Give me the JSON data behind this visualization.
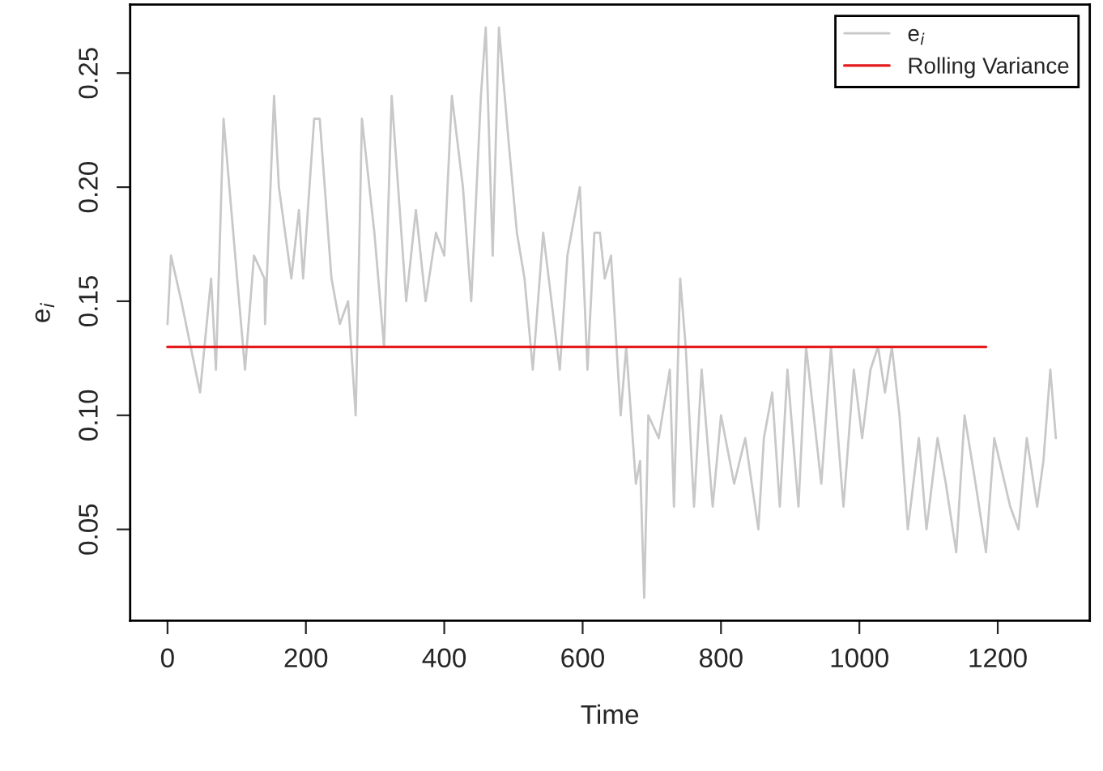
{
  "chart_data": {
    "type": "line",
    "xlabel": "Time",
    "ylabel": "e$_{i}$",
    "xlim": [
      -54,
      1333
    ],
    "ylim": [
      0.01,
      0.28
    ],
    "xticks": [
      0,
      200,
      400,
      600,
      800,
      1000,
      1200
    ],
    "yticks": [
      {
        "value": 0.05,
        "label": "0.05"
      },
      {
        "value": 0.1,
        "label": "0.10"
      },
      {
        "value": 0.15,
        "label": "0.15"
      },
      {
        "value": 0.2,
        "label": "0.20"
      },
      {
        "value": 0.25,
        "label": "0.25"
      }
    ],
    "grid": false,
    "legend": "top right",
    "marker": "none",
    "line_style": "solid",
    "series": [
      {
        "name": "e$_{i}$",
        "color": "#c8c8c8",
        "x": [
          0,
          5,
          20,
          47,
          63,
          70,
          81,
          95,
          112,
          125,
          140,
          141,
          154,
          161,
          170,
          179,
          190,
          196,
          212,
          220,
          237,
          249,
          261,
          272,
          281,
          299,
          313,
          324,
          345,
          359,
          373,
          388,
          400,
          411,
          427,
          439,
          453,
          460,
          470,
          479,
          493,
          505,
          516,
          528,
          543,
          555,
          567,
          578,
          596,
          607,
          617,
          625,
          632,
          641,
          655,
          663,
          677,
          683,
          689,
          695,
          710,
          726,
          732,
          741,
          749,
          761,
          772,
          788,
          800,
          819,
          835,
          854,
          862,
          874,
          885,
          896,
          912,
          923,
          945,
          959,
          977,
          992,
          1004,
          1016,
          1027,
          1037,
          1047,
          1058,
          1070,
          1086,
          1097,
          1113,
          1125,
          1140,
          1152,
          1168,
          1183,
          1195,
          1218,
          1230,
          1242,
          1257,
          1266,
          1276,
          1284
        ],
        "values": [
          0.14,
          0.17,
          0.15,
          0.11,
          0.16,
          0.12,
          0.23,
          0.18,
          0.12,
          0.17,
          0.16,
          0.14,
          0.24,
          0.2,
          0.18,
          0.16,
          0.19,
          0.16,
          0.23,
          0.23,
          0.16,
          0.14,
          0.15,
          0.1,
          0.23,
          0.18,
          0.13,
          0.24,
          0.15,
          0.19,
          0.15,
          0.18,
          0.17,
          0.24,
          0.2,
          0.15,
          0.24,
          0.27,
          0.17,
          0.27,
          0.22,
          0.18,
          0.16,
          0.12,
          0.18,
          0.15,
          0.12,
          0.17,
          0.2,
          0.12,
          0.18,
          0.18,
          0.16,
          0.17,
          0.1,
          0.13,
          0.07,
          0.08,
          0.02,
          0.1,
          0.09,
          0.12,
          0.06,
          0.16,
          0.13,
          0.06,
          0.12,
          0.06,
          0.1,
          0.07,
          0.09,
          0.05,
          0.09,
          0.11,
          0.06,
          0.12,
          0.06,
          0.13,
          0.07,
          0.13,
          0.06,
          0.12,
          0.09,
          0.12,
          0.13,
          0.11,
          0.13,
          0.1,
          0.05,
          0.09,
          0.05,
          0.09,
          0.07,
          0.04,
          0.1,
          0.07,
          0.04,
          0.09,
          0.06,
          0.05,
          0.09,
          0.06,
          0.08,
          0.12,
          0.09
        ]
      },
      {
        "name": "Rolling Variance",
        "color": "#e41a1c",
        "x": [
          0,
          200,
          400,
          600,
          800,
          1000,
          1183
        ],
        "values": [
          0.13,
          0.13,
          0.13,
          0.13,
          0.13,
          0.13,
          0.13
        ]
      }
    ]
  }
}
